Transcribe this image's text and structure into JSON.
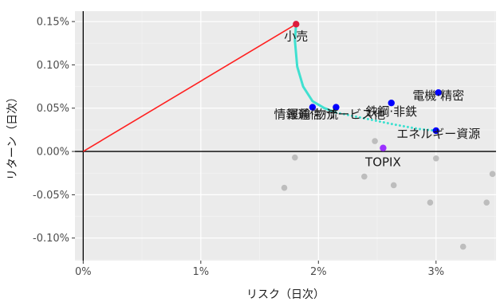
{
  "chart_data": {
    "type": "scatter",
    "xlabel": "リスク（日次）",
    "ylabel": "リターン（日次）",
    "xlim": [
      -0.0007,
      0.0351
    ],
    "ylim": [
      -0.00126,
      0.00162
    ],
    "x_ticks": [
      0,
      0.01,
      0.02,
      0.03
    ],
    "x_tick_labels": [
      "0%",
      "1%",
      "2%",
      "3%"
    ],
    "y_ticks": [
      -0.001,
      -0.0005,
      0,
      0.0005,
      0.001,
      0.0015
    ],
    "y_tick_labels": [
      "-0.10%",
      "-0.05%",
      "0.00%",
      "0.05%",
      "0.10%",
      "0.15%"
    ],
    "grid": true,
    "background": "#ebebeb",
    "labeled_points": [
      {
        "label": "小売",
        "x": 0.0181,
        "y": 0.00147,
        "color": "#dd1c3c"
      },
      {
        "label": "電機·精密",
        "x": 0.0302,
        "y": 0.00068,
        "color": "#0000ff"
      },
      {
        "label": "鉄鋼·非鉄",
        "x": 0.0262,
        "y": 0.00056,
        "color": "#0000ff"
      },
      {
        "label": "情報通信·サービス他",
        "x": 0.0215,
        "y": 0.00051,
        "color": "#0000ff"
      },
      {
        "label": "運輸·物流",
        "x": 0.0195,
        "y": 0.00051,
        "color": "#0000ff"
      },
      {
        "label": "エネルギー資源",
        "x": 0.03,
        "y": 0.00024,
        "color": "#0000ff"
      },
      {
        "label": "TOPIX",
        "x": 0.0255,
        "y": 4e-05,
        "color": "#9b30ff"
      }
    ],
    "other_points": [
      {
        "x": 0.018,
        "y": -7e-05
      },
      {
        "x": 0.0171,
        "y": -0.00042
      },
      {
        "x": 0.0239,
        "y": -0.00029
      },
      {
        "x": 0.0248,
        "y": 0.00012
      },
      {
        "x": 0.0264,
        "y": -0.00039
      },
      {
        "x": 0.03,
        "y": -8e-05
      },
      {
        "x": 0.0295,
        "y": -0.00059
      },
      {
        "x": 0.0348,
        "y": -0.00026
      },
      {
        "x": 0.0343,
        "y": -0.00059
      },
      {
        "x": 0.0323,
        "y": -0.0011
      }
    ],
    "red_line": {
      "from": {
        "x": 0,
        "y": 0
      },
      "to": {
        "x": 0.0181,
        "y": 0.00147
      },
      "color": "#ff2020"
    },
    "frontier": {
      "color": "#40e0d0",
      "solid": [
        {
          "x": 0.0181,
          "y": 0.00147
        },
        {
          "x": 0.018,
          "y": 0.00128
        },
        {
          "x": 0.0182,
          "y": 0.00098
        },
        {
          "x": 0.0187,
          "y": 0.00075
        },
        {
          "x": 0.0195,
          "y": 0.00058
        },
        {
          "x": 0.0205,
          "y": 0.0005
        },
        {
          "x": 0.0215,
          "y": 0.00045
        }
      ],
      "dotted": [
        {
          "x": 0.0215,
          "y": 0.00045
        },
        {
          "x": 0.024,
          "y": 0.00038
        },
        {
          "x": 0.0265,
          "y": 0.00031
        },
        {
          "x": 0.0285,
          "y": 0.00026
        },
        {
          "x": 0.03,
          "y": 0.00024
        }
      ]
    }
  }
}
